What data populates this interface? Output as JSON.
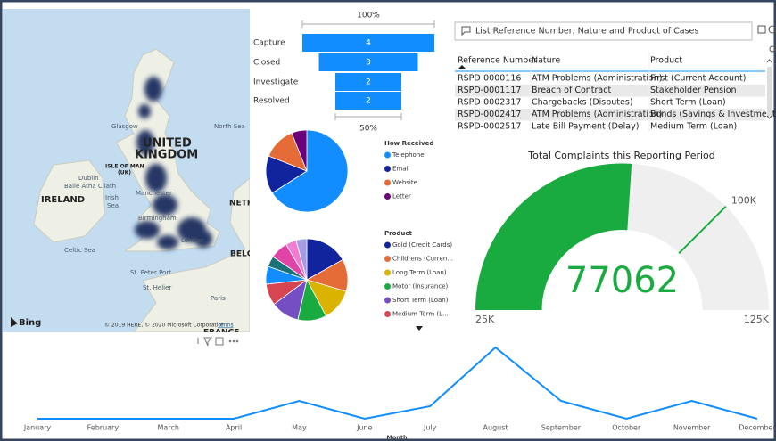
{
  "map": {
    "labels": [
      "North Sea",
      "Glasgow",
      "UNITED",
      "KINGDOM",
      "ISLE OF MAN",
      "(UK)",
      "Dublin",
      "Baile Átha Cliath",
      "IRELAND",
      "Irish",
      "Sea",
      "Manchester",
      "Birmingham",
      "London",
      "NETH",
      "BELG",
      "Celtic Sea",
      "St. Peter Port",
      "St. Helier",
      "Paris",
      "FRANCE"
    ],
    "bing": "Bing",
    "attribution": "© 2019 HERE, © 2020 Microsoft Corporation",
    "terms": "Terms"
  },
  "funnel": {
    "type": "funnel",
    "categories": [
      "Capture",
      "Closed",
      "Investigate",
      "Resolved"
    ],
    "values": [
      4,
      3,
      2,
      2
    ],
    "color": "#118DFF",
    "top_label": "100%",
    "bottom_label": "50%"
  },
  "how_received": {
    "type": "pie",
    "title": "How Received",
    "series": [
      {
        "name": "Telephone",
        "color": "#118DFF",
        "value": 66
      },
      {
        "name": "Email",
        "color": "#12239E",
        "value": 15
      },
      {
        "name": "Website",
        "color": "#E66C37",
        "value": 13
      },
      {
        "name": "Letter",
        "color": "#6B007B",
        "value": 6
      }
    ]
  },
  "product": {
    "type": "pie",
    "title": "Product",
    "series": [
      {
        "name": "Gold (Credit Cards)",
        "color": "#12239E",
        "value": 60
      },
      {
        "name": "Childrens (Curren...",
        "color": "#E66C37",
        "value": 45
      },
      {
        "name": "Long Term (Loan)",
        "color": "#D9B300",
        "value": 45
      },
      {
        "name": "Motor (Insurance)",
        "color": "#1AAB40",
        "value": 40
      },
      {
        "name": "Short Term (Loan)",
        "color": "#744EC2",
        "value": 40
      },
      {
        "name": "Medium Term (L...",
        "color": "#D64550",
        "value": 30
      },
      {
        "color": "#118DFF",
        "value": 25
      },
      {
        "color": "#197278",
        "value": 15
      },
      {
        "color": "#E044A7",
        "value": 25
      },
      {
        "color": "#F07DD0",
        "value": 15
      },
      {
        "color": "#A39BE5",
        "value": 15
      }
    ]
  },
  "qa": {
    "prompt": "List Reference Number, Nature and Product of Cases"
  },
  "table": {
    "columns": [
      "Reference Number",
      "Nature",
      "Product"
    ],
    "rows": [
      [
        "RSPD-0000116",
        "ATM Problems (Administration)",
        "First (Current Account)"
      ],
      [
        "RSPD-0001117",
        "Breach of Contract",
        "Stakeholder Pension"
      ],
      [
        "RSPD-0002317",
        "Chargebacks (Disputes)",
        "Short Term (Loan)"
      ],
      [
        "RSPD-0002417",
        "ATM Problems (Administration)",
        "Bonds (Savings & Investments)"
      ],
      [
        "RSPD-0002517",
        "Late Bill Payment (Delay)",
        "Medium Term (Loan)"
      ]
    ]
  },
  "gauge": {
    "type": "gauge",
    "title": "Total Complaints this Reporting Period",
    "value": 77062,
    "color": "#1AAB40",
    "ylim": [
      25000,
      125000
    ],
    "yticks": [
      {
        "value": 25000,
        "label": "25K"
      },
      {
        "value": 125000,
        "label": "125K"
      }
    ],
    "target": {
      "value": 100000,
      "label": "100K"
    }
  },
  "line": {
    "type": "line",
    "categories": [
      "January",
      "February",
      "March",
      "April",
      "May",
      "June",
      "July",
      "August",
      "September",
      "October",
      "November",
      "December"
    ],
    "values": [
      0,
      0,
      0,
      0,
      1,
      0,
      0.7,
      4,
      1,
      0,
      1,
      0
    ],
    "ylim": [
      0,
      4.5
    ],
    "x_label": "Month",
    "color": "#118DFF"
  }
}
